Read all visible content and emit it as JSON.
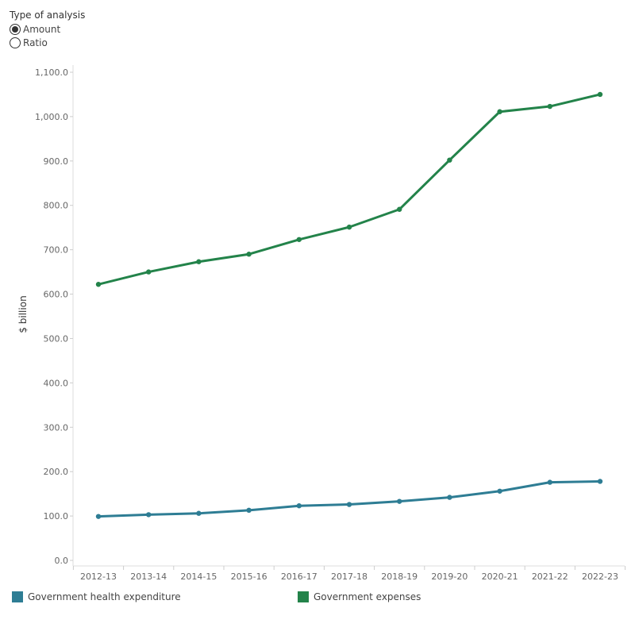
{
  "filter": {
    "title": "Type of analysis",
    "options": [
      {
        "label": "Amount",
        "selected": true
      },
      {
        "label": "Ratio",
        "selected": false
      }
    ]
  },
  "chart_data": {
    "type": "line",
    "ylabel": "$ billion",
    "xlabel": "",
    "ylim": [
      0,
      1100
    ],
    "yticks": [
      "0.0",
      "100.0",
      "200.0",
      "300.0",
      "400.0",
      "500.0",
      "600.0",
      "700.0",
      "800.0",
      "900.0",
      "1,000.0",
      "1,100.0"
    ],
    "categories": [
      "2012-13",
      "2013-14",
      "2014-15",
      "2015-16",
      "2016-17",
      "2017-18",
      "2018-19",
      "2019-20",
      "2020-21",
      "2021-22",
      "2022-23"
    ],
    "series": [
      {
        "name": "Government health expenditure",
        "color": "#2e7d94",
        "values": [
          99,
          103,
          106,
          113,
          123,
          126,
          133,
          142,
          156,
          176,
          178
        ]
      },
      {
        "name": "Government expenses",
        "color": "#23834a",
        "values": [
          622,
          650,
          673,
          690,
          723,
          751,
          791,
          902,
          1011,
          1023,
          1050
        ]
      }
    ],
    "legend_position": "bottom",
    "grid": false
  }
}
